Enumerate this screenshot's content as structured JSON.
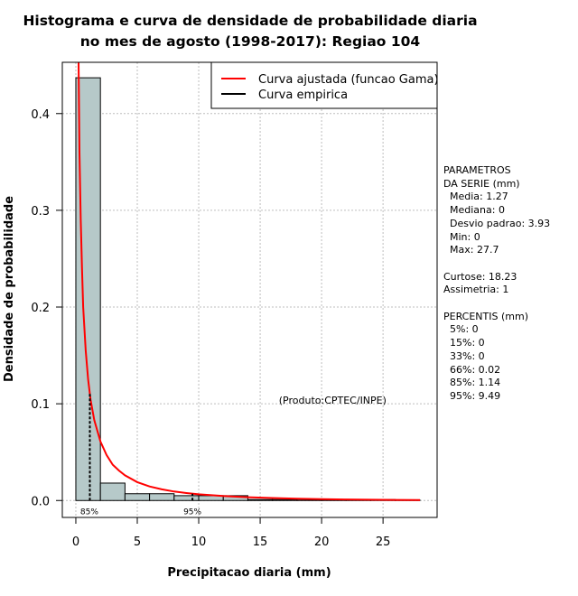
{
  "chart_data": {
    "type": "histogram",
    "title_lines": [
      "Histograma e curva de densidade de probabilidade diaria",
      "no mes de agosto (1998-2017): Regiao 104"
    ],
    "xlabel": "Precipitacao diaria (mm)",
    "ylabel": "Densidade de probabilidade",
    "xlim": [
      -1.1,
      29.4
    ],
    "ylim": [
      -0.0175,
      0.453
    ],
    "x_ticks": [
      0,
      5,
      10,
      15,
      20,
      25
    ],
    "y_ticks": [
      0.0,
      0.1,
      0.2,
      0.3,
      0.4
    ],
    "y_tick_labels": [
      "0.0",
      "0.1",
      "0.2",
      "0.3",
      "0.4"
    ],
    "grid": true,
    "bins": [
      {
        "x0": 0,
        "x1": 2,
        "density": 0.437
      },
      {
        "x0": 2,
        "x1": 4,
        "density": 0.018
      },
      {
        "x0": 4,
        "x1": 6,
        "density": 0.007
      },
      {
        "x0": 6,
        "x1": 8,
        "density": 0.007
      },
      {
        "x0": 8,
        "x1": 10,
        "density": 0.005
      },
      {
        "x0": 10,
        "x1": 12,
        "density": 0.005
      },
      {
        "x0": 12,
        "x1": 14,
        "density": 0.005
      },
      {
        "x0": 14,
        "x1": 16,
        "density": 0.001
      },
      {
        "x0": 16,
        "x1": 18,
        "density": 0.001
      },
      {
        "x0": 18,
        "x1": 20,
        "density": 0.0005
      },
      {
        "x0": 20,
        "x1": 22,
        "density": 0.0005
      },
      {
        "x0": 22,
        "x1": 24,
        "density": 0.0005
      },
      {
        "x0": 24,
        "x1": 26,
        "density": 0.001
      },
      {
        "x0": 26,
        "x1": 28,
        "density": 0.0005
      }
    ],
    "fitted_curve": {
      "name": "Curva ajustada (funcao Gama)",
      "color": "#ff0000",
      "points": [
        [
          0.22,
          0.453
        ],
        [
          0.3,
          0.36
        ],
        [
          0.4,
          0.29
        ],
        [
          0.5,
          0.24
        ],
        [
          0.6,
          0.2
        ],
        [
          0.8,
          0.155
        ],
        [
          1.0,
          0.125
        ],
        [
          1.2,
          0.104
        ],
        [
          1.5,
          0.083
        ],
        [
          2.0,
          0.061
        ],
        [
          2.5,
          0.047
        ],
        [
          3.0,
          0.037
        ],
        [
          3.5,
          0.031
        ],
        [
          4.0,
          0.026
        ],
        [
          5.0,
          0.019
        ],
        [
          6.0,
          0.0145
        ],
        [
          7.0,
          0.0115
        ],
        [
          8.0,
          0.0093
        ],
        [
          9.0,
          0.0077
        ],
        [
          10.0,
          0.0064
        ],
        [
          12.0,
          0.0046
        ],
        [
          14.0,
          0.0034
        ],
        [
          16.0,
          0.0026
        ],
        [
          18.0,
          0.0019
        ],
        [
          20.0,
          0.0014
        ],
        [
          22.0,
          0.0011
        ],
        [
          24.0,
          0.0008
        ],
        [
          26.0,
          0.0006
        ],
        [
          28.0,
          0.0005
        ]
      ]
    },
    "empirical_curve": {
      "name": "Curva empirica",
      "color": "#000000"
    },
    "percentile_markers": [
      {
        "label": "85%",
        "x": 1.14,
        "label_x": 1.1
      },
      {
        "label": "95%",
        "x": 9.49,
        "label_x": 9.49
      }
    ],
    "annotation": "(Produto:CPTEC/INPE)",
    "annotation_x": 20.9,
    "annotation_y": 0.1,
    "colors": {
      "bar_fill": "#b6c9c9",
      "grid": "#bdbdbd",
      "fitted": "#ff0000"
    }
  },
  "stats": {
    "header_1": "PARAMETROS",
    "header_2": "DA SERIE (mm)",
    "media": "Media: 1.27",
    "mediana": "Mediana: 0",
    "desvio": "Desvio padrao: 3.93",
    "min": "Min: 0",
    "max": "Max: 27.7",
    "curtose": "Curtose: 18.23",
    "assimetria": "Assimetria: 1",
    "percentis_header": "PERCENTIS (mm)",
    "p5": "5%: 0",
    "p15": "15%: 0",
    "p33": "33%: 0",
    "p66": "66%: 0.02",
    "p85": "85%: 1.14",
    "p95": "95%: 9.49"
  }
}
